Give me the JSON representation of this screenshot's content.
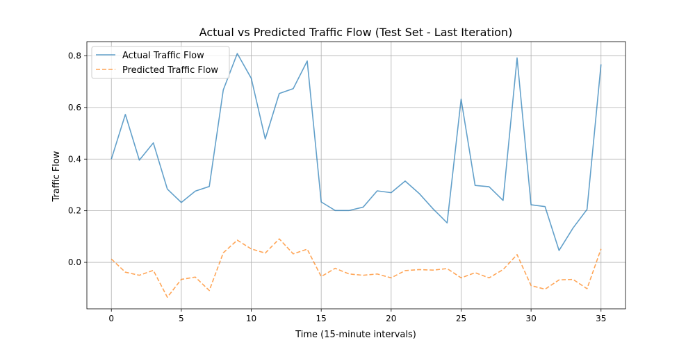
{
  "chart_data": {
    "type": "line",
    "title": "Actual vs Predicted Traffic Flow (Test Set - Last Iteration)",
    "xlabel": "Time (15-minute intervals)",
    "ylabel": "Traffic Flow",
    "xlim": [
      -1.75,
      36.75
    ],
    "ylim": [
      -0.18,
      0.855
    ],
    "xticks": [
      0,
      5,
      10,
      15,
      20,
      25,
      30,
      35
    ],
    "yticks": [
      0.0,
      0.2,
      0.4,
      0.6,
      0.8
    ],
    "ytick_labels": [
      "0.0",
      "0.2",
      "0.4",
      "0.6",
      "0.8"
    ],
    "grid": true,
    "legend_position": "top-left",
    "x": [
      0,
      1,
      2,
      3,
      4,
      5,
      6,
      7,
      8,
      9,
      10,
      11,
      12,
      13,
      14,
      15,
      16,
      17,
      18,
      19,
      20,
      21,
      22,
      23,
      24,
      25,
      26,
      27,
      28,
      29,
      30,
      31,
      32,
      33,
      34,
      35
    ],
    "series": [
      {
        "name": "Actual Traffic Flow",
        "color": "#1f77b4",
        "style": "solid",
        "values": [
          0.4,
          0.573,
          0.396,
          0.463,
          0.284,
          0.232,
          0.276,
          0.294,
          0.668,
          0.809,
          0.713,
          0.478,
          0.654,
          0.673,
          0.78,
          0.234,
          0.201,
          0.201,
          0.214,
          0.277,
          0.27,
          0.315,
          0.267,
          0.207,
          0.153,
          0.632,
          0.298,
          0.293,
          0.24,
          0.792,
          0.223,
          0.216,
          0.046,
          0.133,
          0.205,
          0.767
        ]
      },
      {
        "name": "Predicted Traffic Flow",
        "color": "#ff7f0e",
        "style": "dashed",
        "values": [
          0.013,
          -0.038,
          -0.05,
          -0.031,
          -0.135,
          -0.066,
          -0.057,
          -0.109,
          0.037,
          0.086,
          0.052,
          0.036,
          0.091,
          0.033,
          0.051,
          -0.055,
          -0.023,
          -0.045,
          -0.05,
          -0.045,
          -0.06,
          -0.032,
          -0.028,
          -0.03,
          -0.024,
          -0.06,
          -0.04,
          -0.06,
          -0.028,
          0.03,
          -0.09,
          -0.104,
          -0.068,
          -0.066,
          -0.102,
          0.052
        ]
      }
    ]
  }
}
